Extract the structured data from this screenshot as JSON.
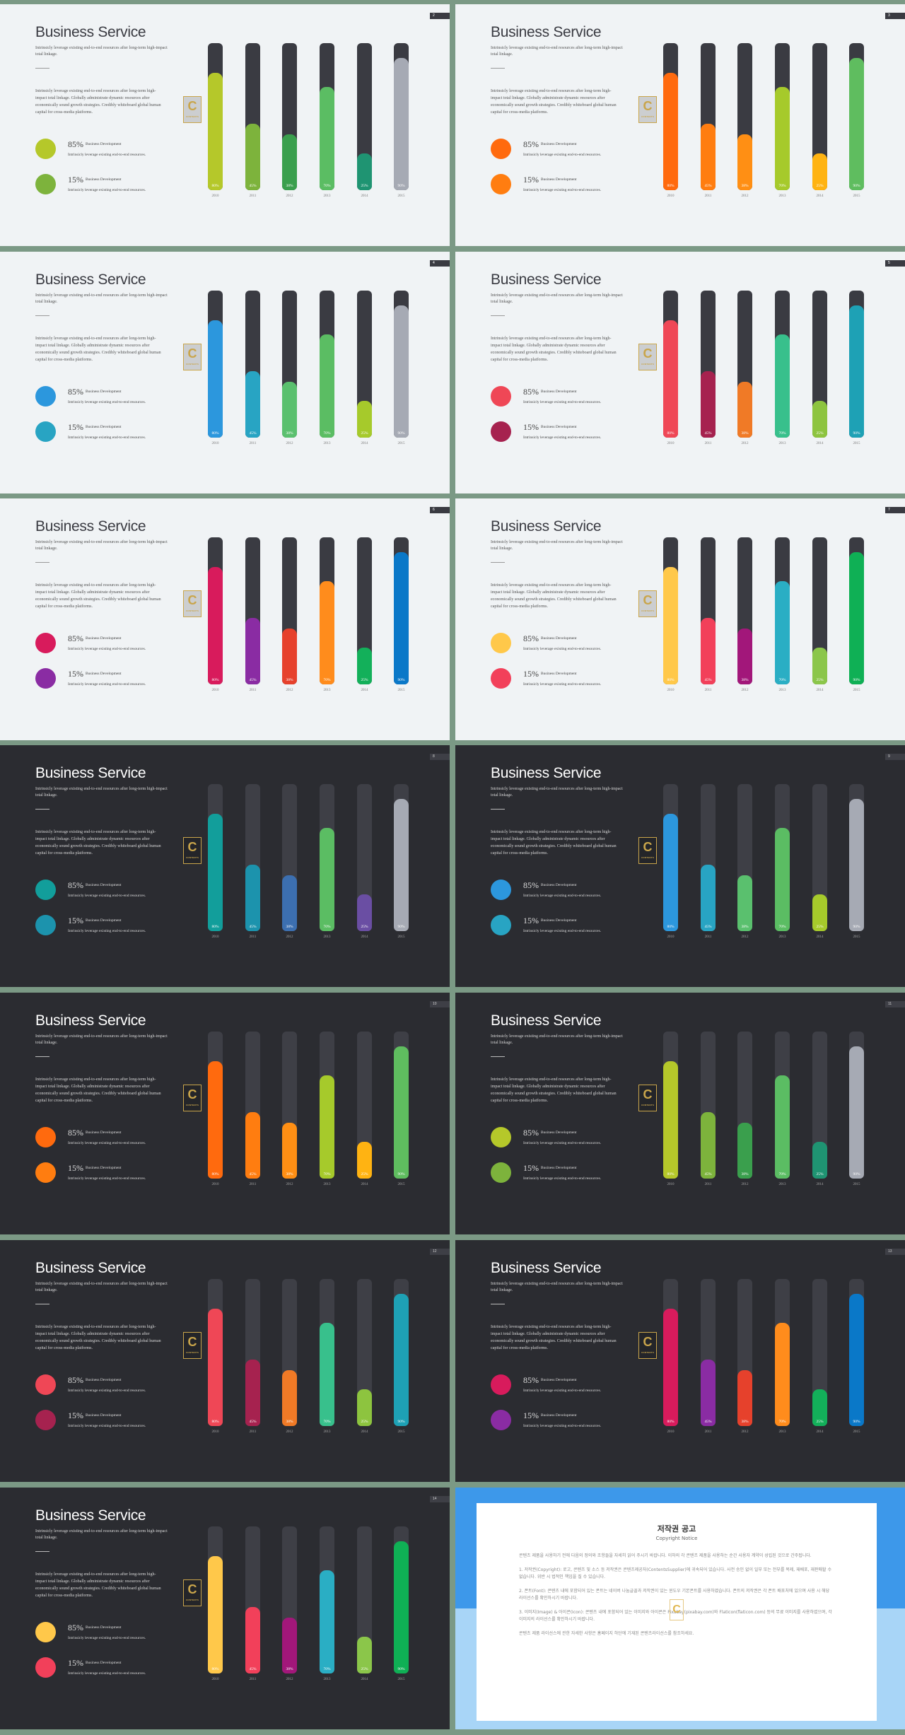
{
  "slides_common": {
    "title": "Business Service",
    "subtitle": "Intrinsicly leverage existing end-to-end resources after long-term high-impact total linkage.",
    "paragraph": "Intrinsicly leverage existing end-to-end resources after long-term high-impact total linkage. Globally administrate dynamic resources after economically sound growth strategies. Credibly whiteboard global human capital for cross-media platforms.",
    "legend": [
      {
        "pct": "85%",
        "label": "Business Development",
        "desc": "Intrinsicly leverage existing end-to-end resources."
      },
      {
        "pct": "15%",
        "label": "Business Development",
        "desc": "Intrinsicly leverage existing end-to-end resources."
      }
    ],
    "watermark": "C",
    "watermark_sub": "CONTENTS",
    "years": [
      "2010",
      "2011",
      "2012",
      "2013",
      "2014",
      "2015"
    ],
    "bar_labels": [
      "80%",
      "45%",
      "38%",
      "70%",
      "25%",
      "90%"
    ],
    "bar_values": [
      80,
      45,
      38,
      70,
      25,
      90
    ]
  },
  "slides": [
    {
      "page": "2",
      "theme": "light",
      "legend_colors": [
        "#b5c82a",
        "#7db33c"
      ],
      "colors": [
        "#b5c82a",
        "#7db33c",
        "#3a9f4d",
        "#5bbd63",
        "#1f9472",
        "#a6aab4"
      ]
    },
    {
      "page": "3",
      "theme": "light",
      "legend_colors": [
        "#ff6a0e",
        "#ff7d10"
      ],
      "colors": [
        "#ff6a0e",
        "#ff7d10",
        "#ff8f14",
        "#a6ca2b",
        "#ffb312",
        "#5fbd5f"
      ]
    },
    {
      "page": "4",
      "theme": "light",
      "legend_colors": [
        "#2c97dd",
        "#28a4c3"
      ],
      "colors": [
        "#2c97dd",
        "#28a4c3",
        "#5ac06e",
        "#5bbd63",
        "#a6ca2b",
        "#a6aab4"
      ]
    },
    {
      "page": "5",
      "theme": "light",
      "legend_colors": [
        "#ef4756",
        "#a6224f"
      ],
      "colors": [
        "#ef4756",
        "#a6224f",
        "#f07a26",
        "#38c08c",
        "#8dc43f",
        "#1ea1b5"
      ]
    },
    {
      "page": "6",
      "theme": "light",
      "legend_colors": [
        "#d81b5c",
        "#8a2ca3"
      ],
      "colors": [
        "#d81b5c",
        "#8a2ca3",
        "#e6412c",
        "#ff8c1c",
        "#13b05a",
        "#0a78c8"
      ]
    },
    {
      "page": "7",
      "theme": "light",
      "legend_colors": [
        "#ffc84a",
        "#f2405a"
      ],
      "colors": [
        "#ffc84a",
        "#f2405a",
        "#a2177a",
        "#2aaec4",
        "#8bc64a",
        "#0fb055"
      ]
    },
    {
      "page": "8",
      "theme": "dark",
      "legend_colors": [
        "#129e9b",
        "#1c93ad"
      ],
      "colors": [
        "#129e9b",
        "#1c93ad",
        "#3c6fb0",
        "#5bbd63",
        "#6a4ea3",
        "#a6aab4"
      ]
    },
    {
      "page": "9",
      "theme": "dark",
      "legend_colors": [
        "#2c97dd",
        "#28a4c3"
      ],
      "colors": [
        "#2c97dd",
        "#28a4c3",
        "#5ac06e",
        "#5bbd63",
        "#a6ca2b",
        "#a6aab4"
      ]
    },
    {
      "page": "10",
      "theme": "dark",
      "legend_colors": [
        "#ff6a0e",
        "#ff7d10"
      ],
      "colors": [
        "#ff6a0e",
        "#ff7d10",
        "#ff8f14",
        "#a6ca2b",
        "#ffb312",
        "#5fbd5f"
      ]
    },
    {
      "page": "11",
      "theme": "dark",
      "legend_colors": [
        "#b5c82a",
        "#7db33c"
      ],
      "colors": [
        "#b5c82a",
        "#7db33c",
        "#3a9f4d",
        "#5bbd63",
        "#1f9472",
        "#a6aab4"
      ]
    },
    {
      "page": "12",
      "theme": "dark",
      "legend_colors": [
        "#ef4756",
        "#a6224f"
      ],
      "colors": [
        "#ef4756",
        "#a6224f",
        "#f07a26",
        "#38c08c",
        "#8dc43f",
        "#1ea1b5"
      ]
    },
    {
      "page": "13",
      "theme": "dark",
      "legend_colors": [
        "#d81b5c",
        "#8a2ca3"
      ],
      "colors": [
        "#d81b5c",
        "#8a2ca3",
        "#e6412c",
        "#ff8c1c",
        "#13b05a",
        "#0a78c8"
      ]
    },
    {
      "page": "14",
      "theme": "dark",
      "legend_colors": [
        "#ffc84a",
        "#f2405a"
      ],
      "colors": [
        "#ffc84a",
        "#f2405a",
        "#a2177a",
        "#2aaec4",
        "#8bc64a",
        "#0fb055"
      ]
    }
  ],
  "copyright": {
    "title": "저작권 공고",
    "subtitle": "Copyright Notice",
    "watermark": "C",
    "paragraphs": [
      "콘텐츠 제품을 사용하기 전에 다음의 정의와 조항들을 자세히 읽어 주시기 바랍니다. 이하의 각 콘텐츠 제품을 사용하는 순간 사용자 계약이 성립된 것으로 간주됩니다.",
      "1. 저작권(Copyright): 로고, 콘텐츠 및 소스 등 저작권은 콘텐츠제공자(ContentsSupplier)에 귀속되어 있습니다. 사전 승인 없이 일부 또는 전부를 복제, 재배포, 재판매할 수 없습니다. 위반 시 법적인 책임을 질 수 있습니다.",
      "2. 폰트(Font): 콘텐츠 내에 포함되어 있는 폰트는 네이버 나눔글꼴과 저작권이 있는 윈도우 기본폰트를 사용하였습니다. 폰트의 저작권은 각 폰트 배포처에 있으며 사용 시 해당 라이선스를 확인하시기 바랍니다.",
      "3. 이미지(Image) & 아이콘(Icon): 콘텐츠 내에 포함되어 있는 이미지와 아이콘은 Pixabay(pixabay.com)와 Flaticon(flaticon.com) 등의 무료 이미지를 사용하였으며, 각 이미지의 라이선스를 확인하시기 바랍니다.",
      "콘텐츠 제품 라이선스에 관한 자세한 사항은 홈페이지 하단에 기재된 콘텐츠라이선스를 참조하세요."
    ]
  }
}
